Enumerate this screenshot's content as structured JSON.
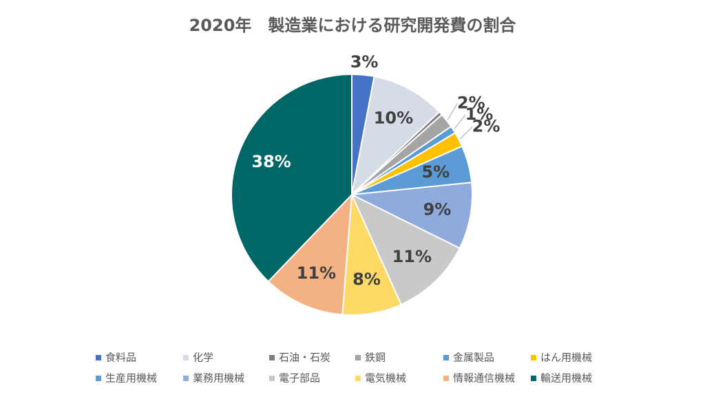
{
  "chart_data": {
    "type": "pie",
    "title": "2020年　製造業における研究開発費の割合",
    "categories": [
      "食料品",
      "化学",
      "石油・石炭",
      "鉄鋼",
      "金属製品",
      "はん用機械",
      "生産用機械",
      "業務用機械",
      "電子部品",
      "電気機械",
      "情報通信機械",
      "輸送用機械"
    ],
    "values": [
      3,
      10,
      0.5,
      2,
      1,
      2,
      5,
      9,
      11,
      8,
      11,
      38
    ],
    "value_labels": [
      "3%",
      "10%",
      null,
      "2%",
      "1%",
      "2%",
      "5%",
      "9%",
      "11%",
      "8%",
      "11%",
      "38%"
    ],
    "colors": [
      "#4472c4",
      "#d6dce5",
      "#7f7f7f",
      "#a5a5a5",
      "#5b9bd5",
      "#ffc000",
      "#5b9bd5",
      "#8faadc",
      "#c9c9c9",
      "#ffd966",
      "#f4b183",
      "#006666"
    ],
    "legend": "bottom"
  }
}
